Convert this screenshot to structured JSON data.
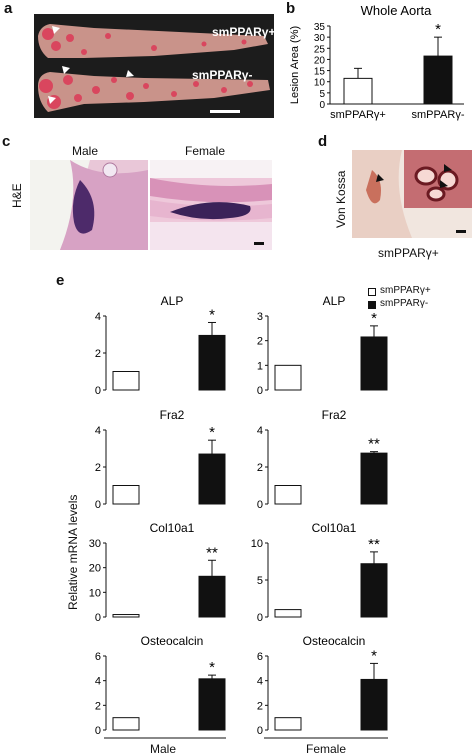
{
  "panels": {
    "a": {
      "label": "a",
      "top_sample_label": "smPPARγ+",
      "bottom_sample_label": "smPPARγ-"
    },
    "b": {
      "label": "b"
    },
    "c": {
      "label": "c",
      "stain_label": "H&E",
      "col_labels": [
        "Male",
        "Female"
      ]
    },
    "d": {
      "label": "d",
      "stain_label": "Von Kossa",
      "sample_label": "smPPARγ+"
    },
    "e": {
      "label": "e",
      "ylabel": "Relative mRNA levels",
      "legend": [
        "smPPARγ+",
        "smPPARγ-"
      ],
      "group_labels": [
        "Male",
        "Female"
      ]
    }
  },
  "chart_data": [
    {
      "id": "b-whole-aorta",
      "type": "bar",
      "title": "Whole Aorta",
      "ylabel": "Lesion Area (%)",
      "categories": [
        "smPPARγ+",
        "smPPARγ-"
      ],
      "values": [
        11.5,
        21.5
      ],
      "errors": [
        4.5,
        8.5
      ],
      "significance": [
        "",
        "*"
      ],
      "ylim": [
        0,
        35
      ],
      "yticks": [
        0,
        5,
        10,
        15,
        20,
        25,
        30,
        35
      ],
      "colors": [
        "#ffffff",
        "#111111"
      ]
    },
    {
      "id": "e-male-alp",
      "type": "bar",
      "title": "ALP",
      "categories": [
        "smPPARγ+",
        "smPPARγ-"
      ],
      "values": [
        1.0,
        2.95
      ],
      "errors": [
        0,
        0.7
      ],
      "significance": [
        "",
        "*"
      ],
      "ylim": [
        0,
        4
      ],
      "yticks": [
        0,
        2,
        4
      ],
      "colors": [
        "#ffffff",
        "#111111"
      ]
    },
    {
      "id": "e-female-alp",
      "type": "bar",
      "title": "ALP",
      "categories": [
        "smPPARγ+",
        "smPPARγ-"
      ],
      "values": [
        1.0,
        2.15
      ],
      "errors": [
        0,
        0.45
      ],
      "significance": [
        "",
        "*"
      ],
      "ylim": [
        0,
        3
      ],
      "yticks": [
        0,
        1,
        2,
        3
      ],
      "colors": [
        "#ffffff",
        "#111111"
      ]
    },
    {
      "id": "e-male-fra2",
      "type": "bar",
      "title": "Fra2",
      "categories": [
        "smPPARγ+",
        "smPPARγ-"
      ],
      "values": [
        1.0,
        2.7
      ],
      "errors": [
        0,
        0.75
      ],
      "significance": [
        "",
        "*"
      ],
      "ylim": [
        0,
        4
      ],
      "yticks": [
        0,
        2,
        4
      ],
      "colors": [
        "#ffffff",
        "#111111"
      ]
    },
    {
      "id": "e-female-fra2",
      "type": "bar",
      "title": "Fra2",
      "categories": [
        "smPPARγ+",
        "smPPARγ-"
      ],
      "values": [
        1.0,
        2.75
      ],
      "errors": [
        0,
        0.08
      ],
      "significance": [
        "",
        "**"
      ],
      "ylim": [
        0,
        4
      ],
      "yticks": [
        0,
        2,
        4
      ],
      "colors": [
        "#ffffff",
        "#111111"
      ]
    },
    {
      "id": "e-male-col10a1",
      "type": "bar",
      "title": "Col10a1",
      "categories": [
        "smPPARγ+",
        "smPPARγ-"
      ],
      "values": [
        1.0,
        16.5
      ],
      "errors": [
        0,
        6.5
      ],
      "significance": [
        "",
        "**"
      ],
      "ylim": [
        0,
        30
      ],
      "yticks": [
        0,
        10,
        20,
        30
      ],
      "colors": [
        "#ffffff",
        "#111111"
      ]
    },
    {
      "id": "e-female-col10a1",
      "type": "bar",
      "title": "Col10a1",
      "categories": [
        "smPPARγ+",
        "smPPARγ-"
      ],
      "values": [
        1.0,
        7.2
      ],
      "errors": [
        0,
        1.6
      ],
      "significance": [
        "",
        "**"
      ],
      "ylim": [
        0,
        10
      ],
      "yticks": [
        0,
        5,
        10
      ],
      "colors": [
        "#ffffff",
        "#111111"
      ]
    },
    {
      "id": "e-male-osteocalcin",
      "type": "bar",
      "title": "Osteocalcin",
      "categories": [
        "smPPARγ+",
        "smPPARγ-"
      ],
      "values": [
        1.0,
        4.15
      ],
      "errors": [
        0,
        0.3
      ],
      "significance": [
        "",
        "*"
      ],
      "ylim": [
        0,
        6
      ],
      "yticks": [
        0,
        2,
        4,
        6
      ],
      "colors": [
        "#ffffff",
        "#111111"
      ]
    },
    {
      "id": "e-female-osteocalcin",
      "type": "bar",
      "title": "Osteocalcin",
      "categories": [
        "smPPARγ+",
        "smPPARγ-"
      ],
      "values": [
        1.0,
        4.1
      ],
      "errors": [
        0,
        1.3
      ],
      "significance": [
        "",
        "*"
      ],
      "ylim": [
        0,
        6
      ],
      "yticks": [
        0,
        2,
        4,
        6
      ],
      "colors": [
        "#ffffff",
        "#111111"
      ]
    }
  ]
}
